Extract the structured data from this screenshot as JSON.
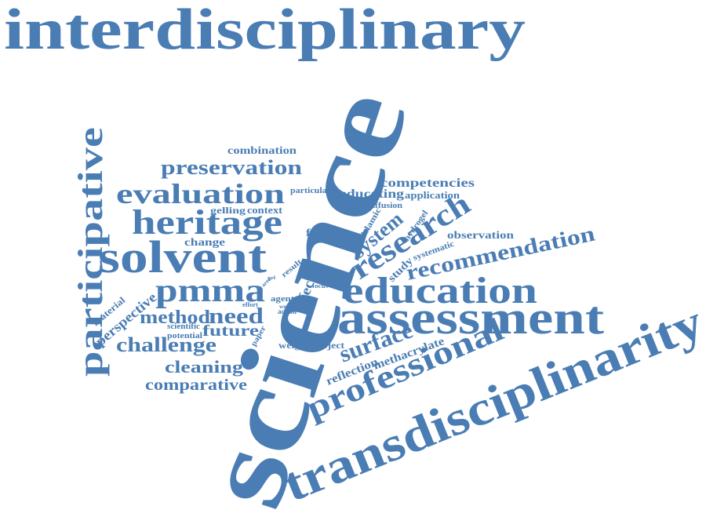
{
  "words": [
    "interdisciplinary",
    "science",
    "transdisciplinarity",
    "participative",
    "assessment",
    "education",
    "solvent",
    "professional",
    "heritage",
    "evaluation",
    "preservation",
    "research",
    "pmma",
    "recommendation",
    "surface",
    "challenge",
    "method",
    "need",
    "future",
    "cleaning",
    "comparative",
    "system",
    "competencies",
    "educating",
    "application",
    "combination",
    "particular",
    "gelling",
    "context",
    "change",
    "field",
    "observation",
    "islamic",
    "hydrogel",
    "diffusion",
    "study",
    "systematic",
    "methacrylate",
    "reflection",
    "weight",
    "project",
    "effect",
    "agent",
    "action",
    "perspective",
    "material",
    "scientific",
    "potential",
    "paper",
    "result",
    "visual",
    "focus",
    "work",
    "effort",
    "area",
    "gel"
  ]
}
